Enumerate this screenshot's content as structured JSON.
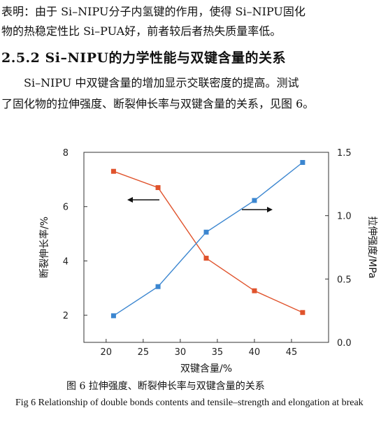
{
  "text": {
    "para1_line1": "表明：由于 Si–NIPU分子内氢键的作用，使得 Si–NIPU固化",
    "para1_line2": "物的热稳定性比 Si–PUA好，前者较后者热失质量率低。",
    "heading": "2.5.2  Si–NIPU的力学性能与双键含量的关系",
    "para2_line1": "Si–NIPU 中双键含量的增加显示交联密度的提高。测试",
    "para2_line2": "了固化物的拉伸强度、断裂伸长率与双键含量的关系，见图 6。",
    "fig_caption_cn": "图 6   拉伸强度、断裂伸长率与双键含量的关系",
    "fig_caption_en": "Fig 6   Relationship of double bonds contents and tensile–strength and elongation at break"
  },
  "colors": {
    "elongation_series": "#e0532c",
    "strength_series": "#3b86d0",
    "axis": "#333333"
  },
  "chart_data": {
    "type": "line",
    "xlabel": "双键含量/%",
    "ylabel_left": "断裂伸长率/%",
    "ylabel_right": "拉伸强度/MPa",
    "xlim": [
      17,
      50
    ],
    "ylim_left": [
      1,
      8
    ],
    "ylim_right": [
      0.0,
      1.5
    ],
    "xticks": [
      20,
      25,
      30,
      35,
      40,
      45
    ],
    "yticks_left": [
      2,
      4,
      6,
      8
    ],
    "yticks_right": [
      "0.0",
      "0.5",
      "1.0",
      "1.5"
    ],
    "grid": false,
    "series": [
      {
        "axis": "left",
        "x": [
          21,
          27,
          33.5,
          40,
          46.5
        ],
        "values": [
          7.3,
          6.7,
          4.1,
          2.9,
          2.1
        ]
      },
      {
        "axis": "right",
        "x": [
          21,
          27,
          33.5,
          40,
          46.5
        ],
        "values": [
          0.21,
          0.44,
          0.87,
          1.12,
          1.42
        ]
      }
    ]
  }
}
